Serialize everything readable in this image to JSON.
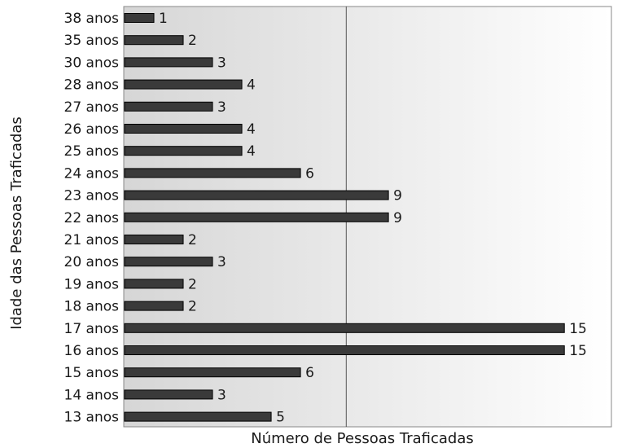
{
  "chart_data": {
    "type": "bar",
    "orientation": "horizontal",
    "categories": [
      "38 anos",
      "35 anos",
      "30 anos",
      "28 anos",
      "27 anos",
      "26 anos",
      "25 anos",
      "24 anos",
      "23 anos",
      "22 anos",
      "21 anos",
      "20 anos",
      "19 anos",
      "18 anos",
      "17 anos",
      "16 anos",
      "15 anos",
      "14 anos",
      "13 anos"
    ],
    "values": [
      1,
      2,
      3,
      4,
      3,
      4,
      4,
      6,
      9,
      9,
      2,
      3,
      2,
      2,
      15,
      15,
      6,
      3,
      5
    ],
    "xlabel": "Número de Pessoas Traficadas",
    "ylabel": "Idade das Pessoas Traficadas",
    "xlim": [
      0,
      16
    ],
    "xgrid": [
      0,
      7.3,
      16
    ],
    "colors": {
      "bar": "#3a3a3a",
      "bar_edge": "#000000",
      "plot_bg_left": "#d6d6d6",
      "plot_bg_right": "#ffffff",
      "grid": "#555555",
      "border": "#888888"
    }
  }
}
